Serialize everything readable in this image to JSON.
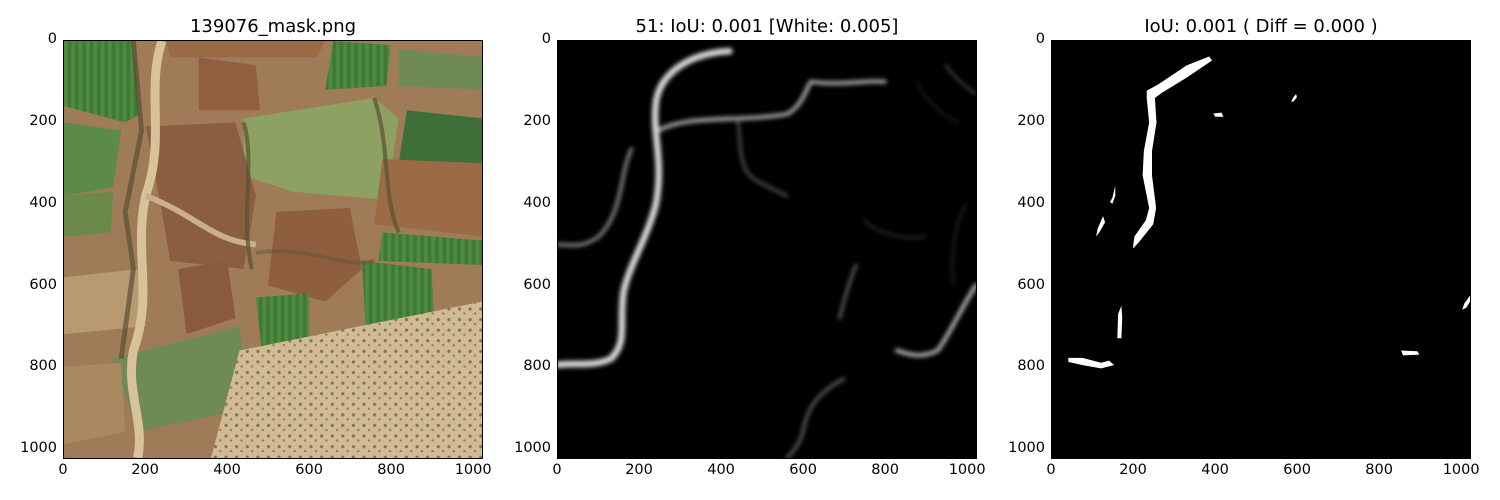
{
  "chart_data": [
    {
      "type": "image",
      "title": "139076_mask.png",
      "xlim": [
        0,
        1024
      ],
      "ylim": [
        1024,
        0
      ],
      "xticks": [
        0,
        200,
        400,
        600,
        800,
        1000
      ],
      "yticks": [
        0,
        200,
        400,
        600,
        800,
        1000
      ],
      "xtick_labels": [
        "0",
        "200",
        "400",
        "600",
        "800",
        "1000"
      ],
      "ytick_labels": [
        "0",
        "200",
        "400",
        "600",
        "800",
        "1000"
      ],
      "content": "satellite image (farmland)",
      "colors": {
        "field_green": "#4f7a3f",
        "field_brown": "#8b6040",
        "sand": "#c9b08a",
        "tree": "#5a5032"
      }
    },
    {
      "type": "image",
      "title": "51: IoU: 0.001 [White: 0.005]",
      "xlim": [
        0,
        1024
      ],
      "ylim": [
        1024,
        0
      ],
      "xticks": [
        0,
        200,
        400,
        600,
        800,
        1000
      ],
      "yticks": [
        0,
        200,
        400,
        600,
        800,
        1000
      ],
      "xtick_labels": [
        "0",
        "200",
        "400",
        "600",
        "800",
        "1000"
      ],
      "ytick_labels": [
        "0",
        "200",
        "400",
        "600",
        "800",
        "1000"
      ],
      "content": "grayscale prediction map",
      "colors": {
        "background": "#000000",
        "stroke": "#ffffff"
      }
    },
    {
      "type": "image",
      "title": "IoU: 0.001 ( Diff = 0.000 )",
      "xlim": [
        0,
        1024
      ],
      "ylim": [
        1024,
        0
      ],
      "xticks": [
        0,
        200,
        400,
        600,
        800,
        1000
      ],
      "yticks": [
        0,
        200,
        400,
        600,
        800,
        1000
      ],
      "xtick_labels": [
        "0",
        "200",
        "400",
        "600",
        "800",
        "1000"
      ],
      "ytick_labels": [
        "0",
        "200",
        "400",
        "600",
        "800",
        "1000"
      ],
      "content": "binary thresholded mask",
      "colors": {
        "background": "#000000",
        "stroke": "#ffffff"
      }
    }
  ]
}
